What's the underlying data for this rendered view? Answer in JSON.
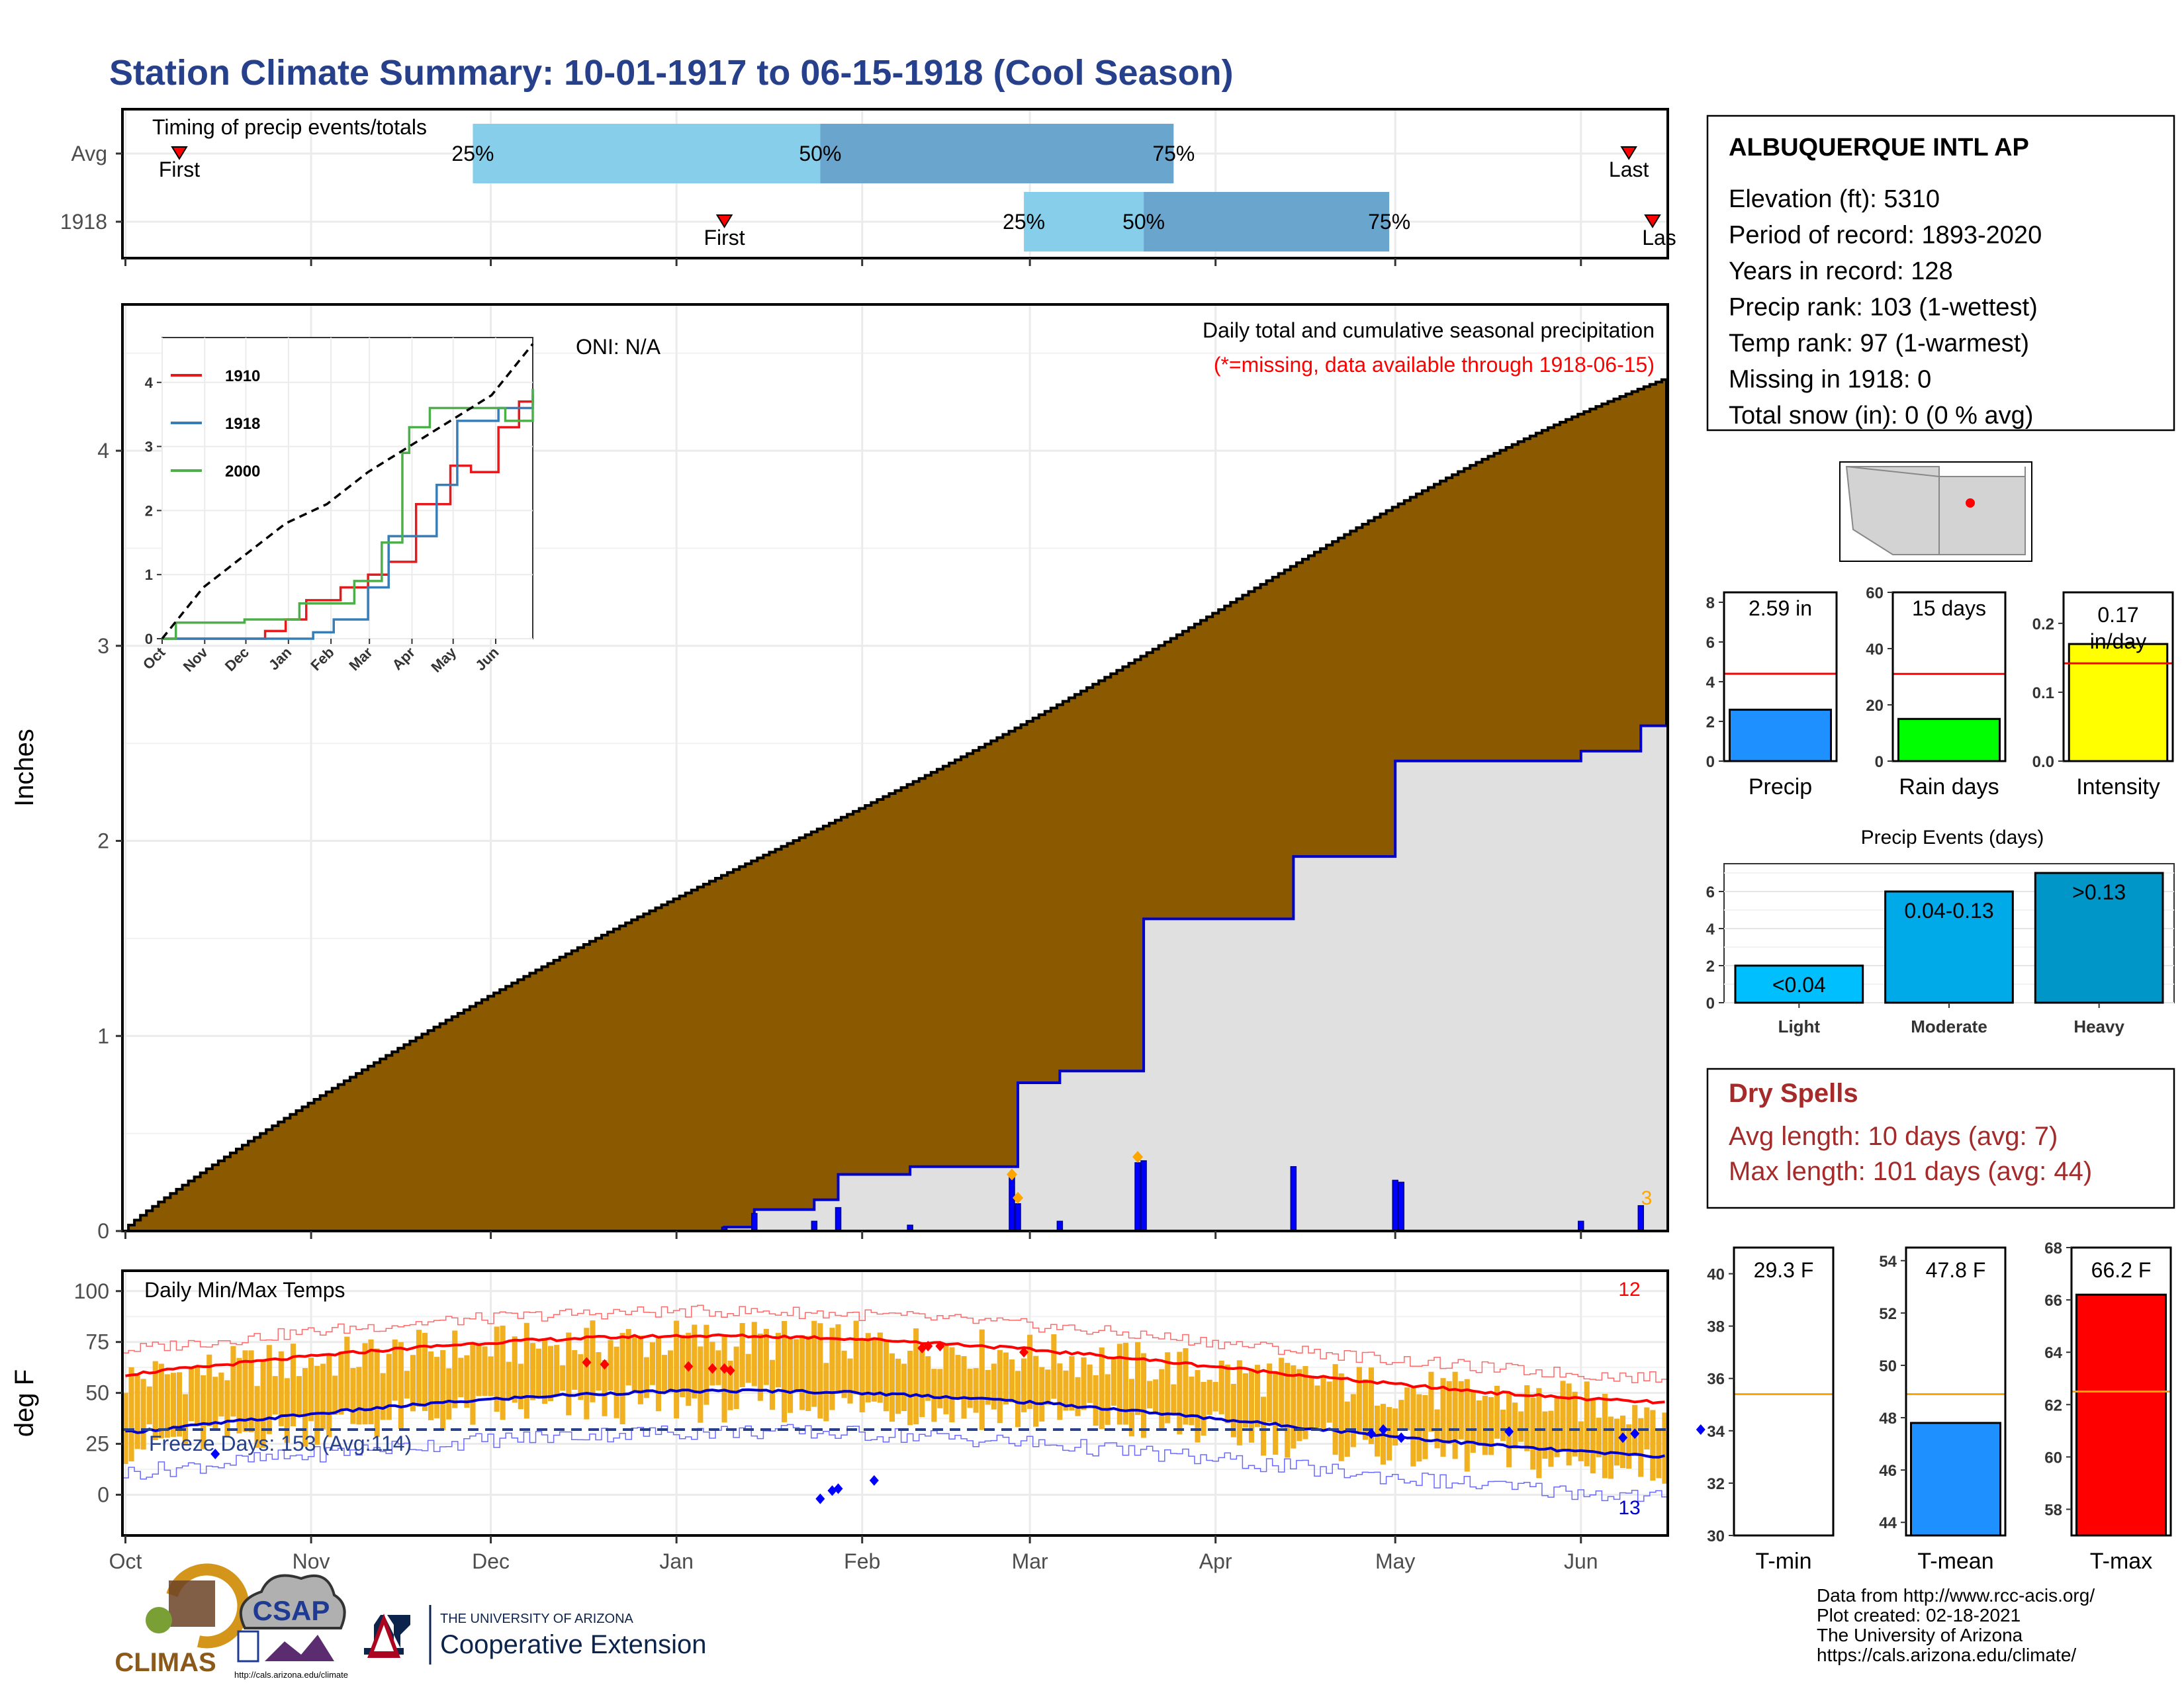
{
  "title": "Station Climate Summary: 10-01-1917 to 06-15-1918 (Cool Season)",
  "timing": {
    "title": "Timing of precip events/totals",
    "rows": [
      {
        "label": "Avg",
        "first": "10-10",
        "last": "06-09",
        "p25": "11-28",
        "p50": "01-25",
        "p75": "03-25"
      },
      {
        "label": "1918",
        "first": "01-09",
        "last": "06-15",
        "p25": "02-28",
        "p50": "03-20",
        "p75": "04-30"
      }
    ],
    "first_label": "First",
    "last_label_avg": "Last",
    "last_label_1918": "Las",
    "pct_labels": [
      "25%",
      "50%",
      "75%"
    ]
  },
  "station": {
    "name": "ALBUQUERQUE INTL AP",
    "lines": [
      "Elevation (ft): 5310",
      "Period of record: 1893-2020",
      "Years in record: 128",
      "Precip rank: 103 (1-wettest)",
      "Temp rank: 97 (1-warmest)",
      "Missing in 1918: 0",
      "Total snow (in): 0 (0 % avg)"
    ]
  },
  "precip_panel": {
    "ylabel": "Inches",
    "oni": "ONI: N/A",
    "legend_title": "Daily total and cumulative seasonal precipitation",
    "missing_note": "(*=missing, data available through 1918-06-15)",
    "missing_count": "3",
    "yticks": [
      "0",
      "1",
      "2",
      "3",
      "4"
    ],
    "month_ticks": [
      "Oct",
      "Nov",
      "Dec",
      "Jan",
      "Feb",
      "Mar",
      "Apr",
      "May",
      "Jun"
    ]
  },
  "inset": {
    "yticks": [
      "0",
      "1",
      "2",
      "3",
      "4"
    ],
    "xticks": [
      "Oct",
      "Nov",
      "Dec",
      "Jan",
      "Feb",
      "Mar",
      "Apr",
      "May",
      "Jun"
    ],
    "legend": [
      {
        "name": "1910",
        "color": "#e41a1c"
      },
      {
        "name": "1918",
        "color": "#377eb8"
      },
      {
        "name": "2000",
        "color": "#4daf4a"
      }
    ]
  },
  "temp_panel": {
    "ylabel": "deg F",
    "title": "Daily Min/Max Temps",
    "freeze": "Freeze Days: 153 (Avg:114)",
    "count_high": "12",
    "count_low": "13",
    "yticks": [
      "0",
      "25",
      "50",
      "75",
      "100"
    ],
    "month_ticks": [
      "Oct",
      "Nov",
      "Dec",
      "Jan",
      "Feb",
      "Mar",
      "Apr",
      "May",
      "Jun"
    ]
  },
  "bars_precip": {
    "value": 2.59,
    "avg": 4.4,
    "label": "2.59 in",
    "xlabel": "Precip",
    "yticks": [
      "0",
      "2",
      "4",
      "6",
      "8"
    ],
    "ylim": [
      0,
      8.5
    ],
    "color": "#1e90ff"
  },
  "bars_raindays": {
    "value": 15,
    "avg": 31,
    "label": "15 days",
    "xlabel": "Rain days",
    "yticks": [
      "0",
      "20",
      "40",
      "60"
    ],
    "ylim": [
      0,
      60
    ],
    "color": "#00ff00"
  },
  "bars_intensity": {
    "value": 0.17,
    "avg": 0.142,
    "label": "0.17\nin/day",
    "label_line1": "0.17",
    "label_line2": "in/day",
    "xlabel": "Intensity",
    "yticks": [
      "0.0",
      "0.1",
      "0.2"
    ],
    "ylim": [
      0,
      0.245
    ],
    "color": "#ffff00"
  },
  "events": {
    "title": "Precip Events (days)",
    "categories": [
      "Light",
      "Moderate",
      "Heavy"
    ],
    "labels": [
      "<0.04",
      "0.04-0.13",
      ">0.13"
    ],
    "values": [
      2,
      6,
      7
    ],
    "yticks": [
      "0",
      "2",
      "4",
      "6"
    ],
    "colors": [
      "#00bfff",
      "#00a9e8",
      "#0096c8"
    ]
  },
  "dry_spells": {
    "title": "Dry Spells",
    "avg_line": "Avg length: 10 days (avg: 7)",
    "max_line": "Max length: 101 days (avg: 44)"
  },
  "tmin": {
    "value": 29.3,
    "avg": 35.4,
    "label": "29.3 F",
    "xlabel": "T-min",
    "yticks": [
      "30",
      "32",
      "34",
      "36",
      "38",
      "40"
    ],
    "ylim": [
      30,
      41
    ],
    "color": "#ffffff"
  },
  "tmean": {
    "value": 47.8,
    "avg": 48.9,
    "label": "47.8 F",
    "xlabel": "T-mean",
    "yticks": [
      "44",
      "46",
      "48",
      "50",
      "52",
      "54"
    ],
    "ylim": [
      43.5,
      54.5
    ],
    "color": "#1e90ff"
  },
  "tmax": {
    "value": 66.2,
    "avg": 62.5,
    "label": "66.2 F",
    "xlabel": "T-max",
    "yticks": [
      "58",
      "60",
      "62",
      "64",
      "66",
      "68"
    ],
    "ylim": [
      57,
      68
    ],
    "color": "#ff0000"
  },
  "credits": [
    "Data from http://www.rcc-acis.org/",
    "Plot created: 02-18-2021",
    "The University of Arizona",
    "https://cals.arizona.edu/climate/"
  ],
  "logos": {
    "climas": "CLIMAS",
    "csap": "CSAP",
    "csap_url": "http://cals.arizona.edu/climate",
    "ua_small": "THE UNIVERSITY OF ARIZONA",
    "ua_big": "Cooperative Extension"
  },
  "chart_data": {
    "type": "area",
    "title": "Daily total and cumulative seasonal precipitation",
    "ylabel": "Inches",
    "x_range": [
      "1917-10-01",
      "1918-06-15"
    ],
    "ylim": [
      0,
      4.75
    ],
    "avg_cumulative_end": 4.32,
    "cumulative_1918": [
      {
        "date": "1918-01-09",
        "value": 0.02
      },
      {
        "date": "1918-01-14",
        "value": 0.11
      },
      {
        "date": "1918-01-24",
        "value": 0.16
      },
      {
        "date": "1918-01-28",
        "value": 0.29
      },
      {
        "date": "1918-02-09",
        "value": 0.33
      },
      {
        "date": "1918-02-27",
        "value": 0.76
      },
      {
        "date": "1918-03-06",
        "value": 0.82
      },
      {
        "date": "1918-03-20",
        "value": 1.6
      },
      {
        "date": "1918-04-14",
        "value": 1.92
      },
      {
        "date": "1918-05-01",
        "value": 2.41
      },
      {
        "date": "1918-06-01",
        "value": 2.46
      },
      {
        "date": "1918-06-11",
        "value": 2.59
      }
    ],
    "daily_1918": [
      {
        "date": "1918-01-09",
        "value": 0.02
      },
      {
        "date": "1918-01-14",
        "value": 0.09
      },
      {
        "date": "1918-01-24",
        "value": 0.05
      },
      {
        "date": "1918-01-28",
        "value": 0.12
      },
      {
        "date": "1918-02-09",
        "value": 0.03
      },
      {
        "date": "1918-02-26",
        "value": 0.29
      },
      {
        "date": "1918-02-27",
        "value": 0.14
      },
      {
        "date": "1918-03-06",
        "value": 0.05
      },
      {
        "date": "1918-03-19",
        "value": 0.35
      },
      {
        "date": "1918-03-20",
        "value": 0.36
      },
      {
        "date": "1918-04-14",
        "value": 0.33
      },
      {
        "date": "1918-05-01",
        "value": 0.26
      },
      {
        "date": "1918-05-02",
        "value": 0.25
      },
      {
        "date": "1918-06-01",
        "value": 0.05
      },
      {
        "date": "1918-06-11",
        "value": 0.13
      }
    ],
    "inset_series": [
      {
        "name": "1910",
        "values": [
          [
            0,
            0
          ],
          [
            15,
            0
          ],
          [
            75,
            0.12
          ],
          [
            90,
            0.3
          ],
          [
            105,
            0.6
          ],
          [
            130,
            0.8
          ],
          [
            150,
            1
          ],
          [
            165,
            1.2
          ],
          [
            185,
            2.1
          ],
          [
            210,
            2.7
          ],
          [
            225,
            2.6
          ],
          [
            245,
            3.3
          ],
          [
            260,
            3.7
          ],
          [
            270,
            3.8
          ]
        ]
      },
      {
        "name": "1918",
        "values": [
          [
            0,
            0
          ],
          [
            100,
            0
          ],
          [
            110,
            0.1
          ],
          [
            125,
            0.3
          ],
          [
            150,
            0.8
          ],
          [
            165,
            1.6
          ],
          [
            200,
            2.4
          ],
          [
            215,
            3.4
          ],
          [
            245,
            3.6
          ],
          [
            270,
            3.9
          ]
        ]
      },
      {
        "name": "2000",
        "values": [
          [
            0,
            0
          ],
          [
            10,
            0.25
          ],
          [
            30,
            0.25
          ],
          [
            60,
            0.3
          ],
          [
            100,
            0.55
          ],
          [
            140,
            0.9
          ],
          [
            160,
            1.5
          ],
          [
            175,
            2.9
          ],
          [
            180,
            3.3
          ],
          [
            195,
            3.6
          ],
          [
            230,
            3.6
          ],
          [
            250,
            3.4
          ],
          [
            270,
            3.9
          ]
        ]
      },
      {
        "name": "avg",
        "values": [
          [
            0,
            0
          ],
          [
            30,
            0.8
          ],
          [
            60,
            1.3
          ],
          [
            90,
            1.8
          ],
          [
            120,
            2.1
          ],
          [
            150,
            2.6
          ],
          [
            180,
            3.0
          ],
          [
            210,
            3.4
          ],
          [
            240,
            3.8
          ],
          [
            270,
            4.6
          ]
        ]
      }
    ]
  }
}
